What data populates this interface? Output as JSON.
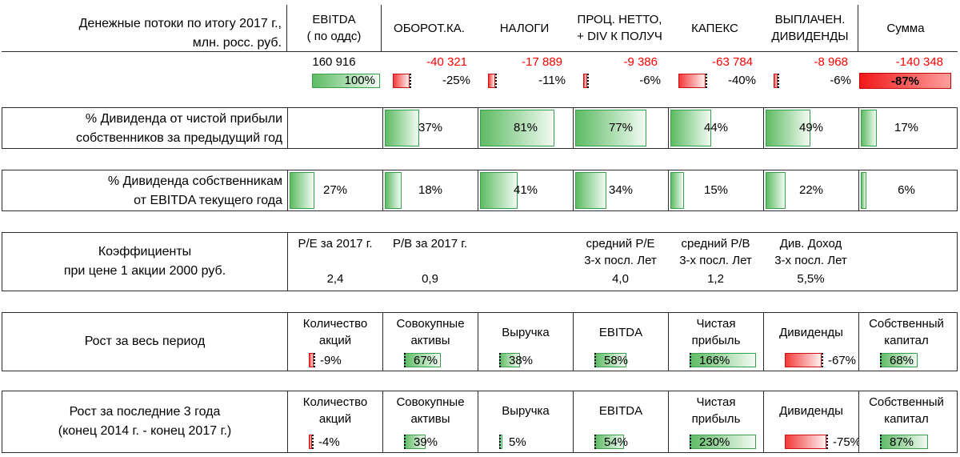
{
  "cashflow": {
    "title_line1": "Денежные потоки по итогу 2017 г.,",
    "title_line2": "млн. росс. руб.",
    "columns": [
      {
        "l1": "EBITDA",
        "l2": "( по оддс)",
        "value": "160 916",
        "pct": "100%",
        "ratio": 1.0,
        "neg": false
      },
      {
        "l1": "ОБОРОТ.КА.",
        "l2": "",
        "value": "-40 321",
        "pct": "-25%",
        "ratio": 0.25,
        "neg": true
      },
      {
        "l1": "НАЛОГИ",
        "l2": "",
        "value": "-17 889",
        "pct": "-11%",
        "ratio": 0.11,
        "neg": true
      },
      {
        "l1": "ПРОЦ. НЕТТО,",
        "l2": "+ DIV К ПОЛУЧ",
        "value": "-9 386",
        "pct": "-6%",
        "ratio": 0.06,
        "neg": true
      },
      {
        "l1": "КАПЕКС",
        "l2": "",
        "value": "-63 784",
        "pct": "-40%",
        "ratio": 0.4,
        "neg": true
      },
      {
        "l1": "ВЫПЛАЧЕН.",
        "l2": "ДИВИДЕНДЫ",
        "value": "-8 968",
        "pct": "-6%",
        "ratio": 0.06,
        "neg": true
      },
      {
        "l1": "Сумма",
        "l2": "",
        "value": "-140 348",
        "pct": "-87%",
        "ratio": 0.87,
        "neg": true
      }
    ]
  },
  "div_profit": {
    "label_line1": "% Дивиденда от чистой прибыли",
    "label_line2": "собственников за предыдущий год",
    "cells": [
      {
        "pct": "",
        "ratio": 0
      },
      {
        "pct": "37%",
        "ratio": 0.37
      },
      {
        "pct": "81%",
        "ratio": 0.81
      },
      {
        "pct": "77%",
        "ratio": 0.77
      },
      {
        "pct": "44%",
        "ratio": 0.44
      },
      {
        "pct": "49%",
        "ratio": 0.49
      },
      {
        "pct": "17%",
        "ratio": 0.17
      }
    ]
  },
  "div_ebitda": {
    "label_line1": "% Дивиденда собственникам",
    "label_line2": "от EBITDA текущего года",
    "cells": [
      {
        "pct": "27%",
        "ratio": 0.27
      },
      {
        "pct": "18%",
        "ratio": 0.18
      },
      {
        "pct": "41%",
        "ratio": 0.41
      },
      {
        "pct": "34%",
        "ratio": 0.34
      },
      {
        "pct": "15%",
        "ratio": 0.15
      },
      {
        "pct": "22%",
        "ratio": 0.22
      },
      {
        "pct": "6%",
        "ratio": 0.06
      }
    ]
  },
  "ratios": {
    "label_line1": "Коэффициенты",
    "label_line2": "при цене 1 акции 2000 руб.",
    "cells": [
      {
        "l1": "P/E за 2017 г.",
        "l2": "",
        "value": "2,4"
      },
      {
        "l1": "P/B за 2017 г.",
        "l2": "",
        "value": "0,9"
      },
      {
        "l1": "",
        "l2": "",
        "value": ""
      },
      {
        "l1": "средний P/E",
        "l2": "3-х посл. Лет",
        "value": "4,0"
      },
      {
        "l1": "средний P/B",
        "l2": "3-х посл. Лет",
        "value": "1,2"
      },
      {
        "l1": "Див. Доход",
        "l2": "3-х посл. Лет",
        "value": "5,5%"
      },
      {
        "l1": "",
        "l2": "",
        "value": ""
      }
    ]
  },
  "growth_all": {
    "label_line1": "Рост за весь период",
    "label_line2": "",
    "cells": [
      {
        "l1": "Количество",
        "l2": "акций",
        "pct": "-9%",
        "ratio": 0.09,
        "neg": true
      },
      {
        "l1": "Совокупные",
        "l2": "активы",
        "pct": "67%",
        "ratio": 0.67,
        "neg": false
      },
      {
        "l1": "Выручка",
        "l2": "",
        "pct": "38%",
        "ratio": 0.38,
        "neg": false
      },
      {
        "l1": "EBITDA",
        "l2": "",
        "pct": "58%",
        "ratio": 0.58,
        "neg": false
      },
      {
        "l1": "Чистая",
        "l2": "прибыль",
        "pct": "166%",
        "ratio": 1.66,
        "neg": false
      },
      {
        "l1": "Дивиденды",
        "l2": "",
        "pct": "-67%",
        "ratio": 0.67,
        "neg": true
      },
      {
        "l1": "Собственный",
        "l2": "капитал",
        "pct": "68%",
        "ratio": 0.68,
        "neg": false
      }
    ]
  },
  "growth_3y": {
    "label_line1": "Рост за последние 3 года",
    "label_line2": "(конец 2014 г. - конец 2017 г.)",
    "cells": [
      {
        "l1": "Количество",
        "l2": "акций",
        "pct": "-4%",
        "ratio": 0.04,
        "neg": true
      },
      {
        "l1": "Совокупные",
        "l2": "активы",
        "pct": "39%",
        "ratio": 0.39,
        "neg": false
      },
      {
        "l1": "Выручка",
        "l2": "",
        "pct": "5%",
        "ratio": 0.05,
        "neg": false
      },
      {
        "l1": "EBITDA",
        "l2": "",
        "pct": "54%",
        "ratio": 0.54,
        "neg": false
      },
      {
        "l1": "Чистая",
        "l2": "прибыль",
        "pct": "230%",
        "ratio": 2.3,
        "neg": false
      },
      {
        "l1": "Дивиденды",
        "l2": "",
        "pct": "-75%",
        "ratio": 0.75,
        "neg": true
      },
      {
        "l1": "Собственный",
        "l2": "капитал",
        "pct": "87%",
        "ratio": 0.87,
        "neg": false
      }
    ]
  }
}
